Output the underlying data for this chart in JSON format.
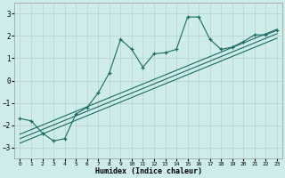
{
  "xlabel": "Humidex (Indice chaleur)",
  "ylabel": "",
  "background_color": "#ceecea",
  "grid_color": "#c0d8d5",
  "line_color": "#1a6b63",
  "xlim": [
    -0.5,
    23.5
  ],
  "ylim": [
    -3.5,
    3.5
  ],
  "xtick_labels": [
    "0",
    "1",
    "2",
    "3",
    "4",
    "5",
    "6",
    "7",
    "8",
    "9",
    "10",
    "11",
    "12",
    "13",
    "14",
    "15",
    "16",
    "17",
    "18",
    "19",
    "20",
    "21",
    "22",
    "23"
  ],
  "xtick_vals": [
    0,
    1,
    2,
    3,
    4,
    5,
    6,
    7,
    8,
    9,
    10,
    11,
    12,
    13,
    14,
    15,
    16,
    17,
    18,
    19,
    20,
    21,
    22,
    23
  ],
  "yticks": [
    -3,
    -2,
    -1,
    0,
    1,
    2,
    3
  ],
  "scatter_x": [
    0,
    1,
    2,
    3,
    4,
    5,
    6,
    7,
    8,
    9,
    10,
    11,
    12,
    13,
    14,
    15,
    16,
    17,
    18,
    19,
    20,
    21,
    22,
    23
  ],
  "scatter_y": [
    -1.7,
    -1.8,
    -2.35,
    -2.7,
    -2.6,
    -1.5,
    -1.2,
    -0.55,
    0.35,
    1.85,
    1.4,
    0.6,
    1.2,
    1.25,
    1.4,
    2.85,
    2.85,
    1.85,
    1.4,
    1.5,
    1.75,
    2.05,
    2.05,
    2.25
  ],
  "line1_x": [
    0,
    23
  ],
  "line1_y": [
    -2.4,
    2.3
  ],
  "line2_x": [
    0,
    23
  ],
  "line2_y": [
    -2.6,
    2.1
  ],
  "line3_x": [
    0,
    23
  ],
  "line3_y": [
    -2.8,
    1.9
  ]
}
